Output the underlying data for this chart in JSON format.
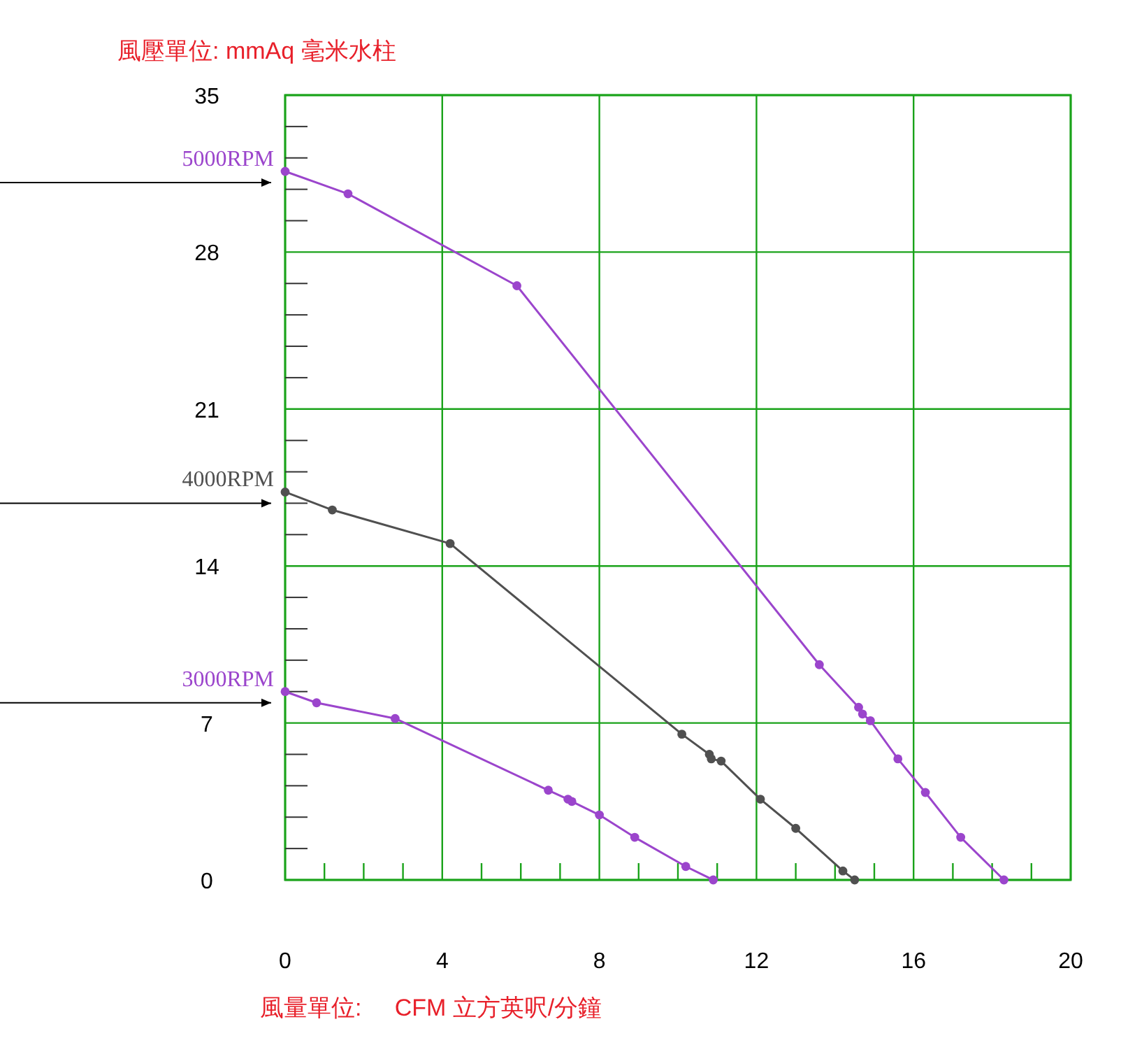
{
  "chart_data": {
    "type": "line",
    "ylabel": "風壓單位:  mmAq 毫米水柱",
    "xlabel": "風量單位:     CFM 立方英呎/分鐘",
    "xlim": [
      0,
      20
    ],
    "ylim": [
      0,
      35
    ],
    "xticks": [
      0,
      {
        "value": 1,
        "label": null
      },
      {
        "value": 2,
        "label": null
      },
      {
        "value": 3,
        "label": null
      },
      4,
      {
        "value": 5,
        "label": null
      },
      {
        "value": 6,
        "label": null
      },
      {
        "value": 7,
        "label": null
      },
      8,
      {
        "value": 9,
        "label": null
      },
      {
        "value": 10,
        "label": null
      },
      {
        "value": 11,
        "label": null
      },
      12,
      {
        "value": 13,
        "label": null
      },
      {
        "value": 14,
        "label": null
      },
      {
        "value": 15,
        "label": null
      },
      16,
      {
        "value": 17,
        "label": null
      },
      {
        "value": 18,
        "label": null
      },
      {
        "value": 19,
        "label": null
      },
      20
    ],
    "yticks": [
      0,
      {
        "value": 1.4,
        "label": null
      },
      {
        "value": 2.8,
        "label": null
      },
      {
        "value": 4.2,
        "label": null
      },
      {
        "value": 5.6,
        "label": null
      },
      7,
      {
        "value": 8.4,
        "label": null
      },
      {
        "value": 9.8,
        "label": null
      },
      {
        "value": 11.2,
        "label": null
      },
      {
        "value": 12.6,
        "label": null
      },
      14,
      {
        "value": 15.4,
        "label": null
      },
      {
        "value": 16.8,
        "label": null
      },
      {
        "value": 18.2,
        "label": null
      },
      {
        "value": 19.6,
        "label": null
      },
      21,
      {
        "value": 22.4,
        "label": null
      },
      {
        "value": 23.8,
        "label": null
      },
      {
        "value": 25.2,
        "label": null
      },
      {
        "value": 26.6,
        "label": null
      },
      28,
      {
        "value": 29.4,
        "label": null
      },
      {
        "value": 30.8,
        "label": null
      },
      {
        "value": 32.2,
        "label": null
      },
      {
        "value": 33.6,
        "label": null
      },
      35
    ],
    "grid": true,
    "marker": "circle",
    "line_style": "solid",
    "series": [
      {
        "name": "5000RPM",
        "color": "#9b45cc",
        "x": [
          0,
          1.6,
          5.9,
          13.6,
          14.6,
          14.7,
          14.9,
          15.6,
          16.3,
          17.2,
          18.3
        ],
        "values": [
          31.6,
          30.6,
          26.5,
          9.6,
          7.7,
          7.4,
          7.1,
          5.4,
          3.9,
          1.9,
          0
        ]
      },
      {
        "name": "4000RPM",
        "color": "#505050",
        "x": [
          0,
          1.2,
          4.2,
          10.1,
          10.8,
          10.85,
          11.1,
          12.1,
          13,
          14.2,
          14.5
        ],
        "values": [
          17.3,
          16.5,
          15,
          6.5,
          5.6,
          5.4,
          5.3,
          3.6,
          2.3,
          0.4,
          0
        ]
      },
      {
        "name": "3000RPM",
        "color": "#9b45cc",
        "x": [
          0,
          0.8,
          2.8,
          6.7,
          7.2,
          7.3,
          8,
          8.9,
          10.2,
          10.9
        ],
        "values": [
          8.4,
          7.9,
          7.2,
          4,
          3.6,
          3.5,
          2.9,
          1.9,
          0.6,
          0
        ]
      }
    ]
  }
}
